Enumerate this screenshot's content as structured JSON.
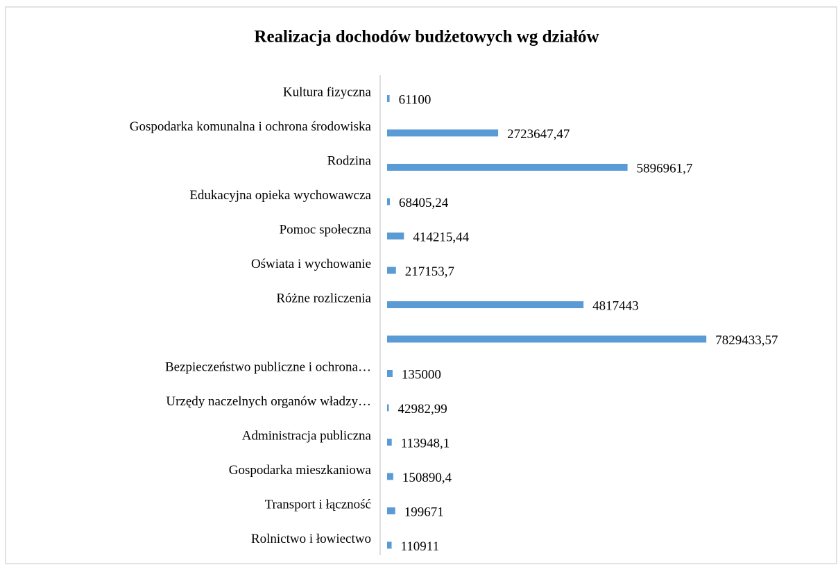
{
  "chart_data": {
    "type": "bar",
    "orientation": "horizontal",
    "title": "Realizacja dochodów budżetowych wg działów",
    "categories": [
      "Kultura fizyczna",
      "Gospodarka komunalna i ochrona środowiska",
      "Rodzina",
      "Edukacyjna opieka wychowawcza",
      "Pomoc społeczna",
      "Oświata i wychowanie",
      "Różne rozliczenia",
      null,
      "Bezpieczeństwo publiczne i ochrona…",
      "Urzędy naczelnych organów władzy…",
      "Administracja publiczna",
      "Gospodarka mieszkaniowa",
      "Transport i łączność",
      "Rolnictwo i łowiectwo"
    ],
    "values": [
      61100,
      2723647.47,
      5896961.7,
      68405.24,
      414215.44,
      217153.7,
      4817443,
      7829433.57,
      135000,
      42982.99,
      113948.1,
      150890.4,
      199671,
      110911
    ],
    "value_labels": [
      "61100",
      "2723647,47",
      "5896961,7",
      "68405,24",
      "414215,44",
      "217153,7",
      "4817443",
      "7829433,57",
      "135000",
      "42982,99",
      "113948,1",
      "150890,4",
      "199671",
      "110911"
    ],
    "color": "#5b9bd5",
    "xlim": [
      0,
      9000000
    ]
  }
}
